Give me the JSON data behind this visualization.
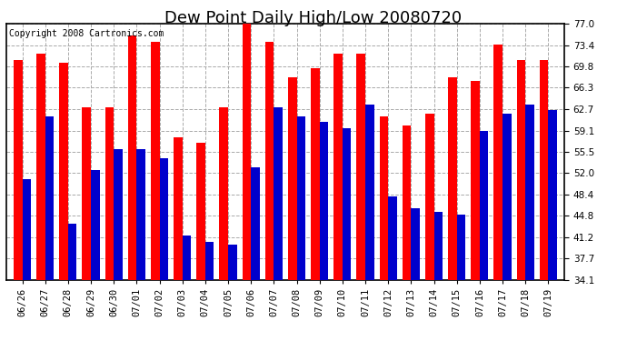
{
  "title": "Dew Point Daily High/Low 20080720",
  "copyright": "Copyright 2008 Cartronics.com",
  "dates": [
    "06/26",
    "06/27",
    "06/28",
    "06/29",
    "06/30",
    "07/01",
    "07/02",
    "07/03",
    "07/04",
    "07/05",
    "07/06",
    "07/07",
    "07/08",
    "07/09",
    "07/10",
    "07/11",
    "07/12",
    "07/13",
    "07/14",
    "07/15",
    "07/16",
    "07/17",
    "07/18",
    "07/19"
  ],
  "highs": [
    71.0,
    72.0,
    70.5,
    63.0,
    63.0,
    75.0,
    74.0,
    58.0,
    57.0,
    63.0,
    77.0,
    74.0,
    68.0,
    69.5,
    72.0,
    72.0,
    61.5,
    60.0,
    62.0,
    68.0,
    67.5,
    73.5,
    71.0,
    71.0
  ],
  "lows": [
    51.0,
    61.5,
    43.5,
    52.5,
    56.0,
    56.0,
    54.5,
    41.5,
    40.5,
    40.0,
    53.0,
    63.0,
    61.5,
    60.5,
    59.5,
    63.5,
    48.0,
    46.0,
    45.5,
    45.0,
    59.0,
    62.0,
    63.5,
    62.5
  ],
  "high_color": "#ff0000",
  "low_color": "#0000cc",
  "bg_color": "#ffffff",
  "plot_bg_color": "#ffffff",
  "grid_color": "#aaaaaa",
  "ylim_min": 34.1,
  "ylim_max": 77.0,
  "yticks": [
    34.1,
    37.7,
    41.2,
    44.8,
    48.4,
    52.0,
    55.5,
    59.1,
    62.7,
    66.3,
    69.8,
    73.4,
    77.0
  ],
  "title_fontsize": 13,
  "copyright_fontsize": 7,
  "tick_fontsize": 7.5,
  "bar_width": 0.38
}
